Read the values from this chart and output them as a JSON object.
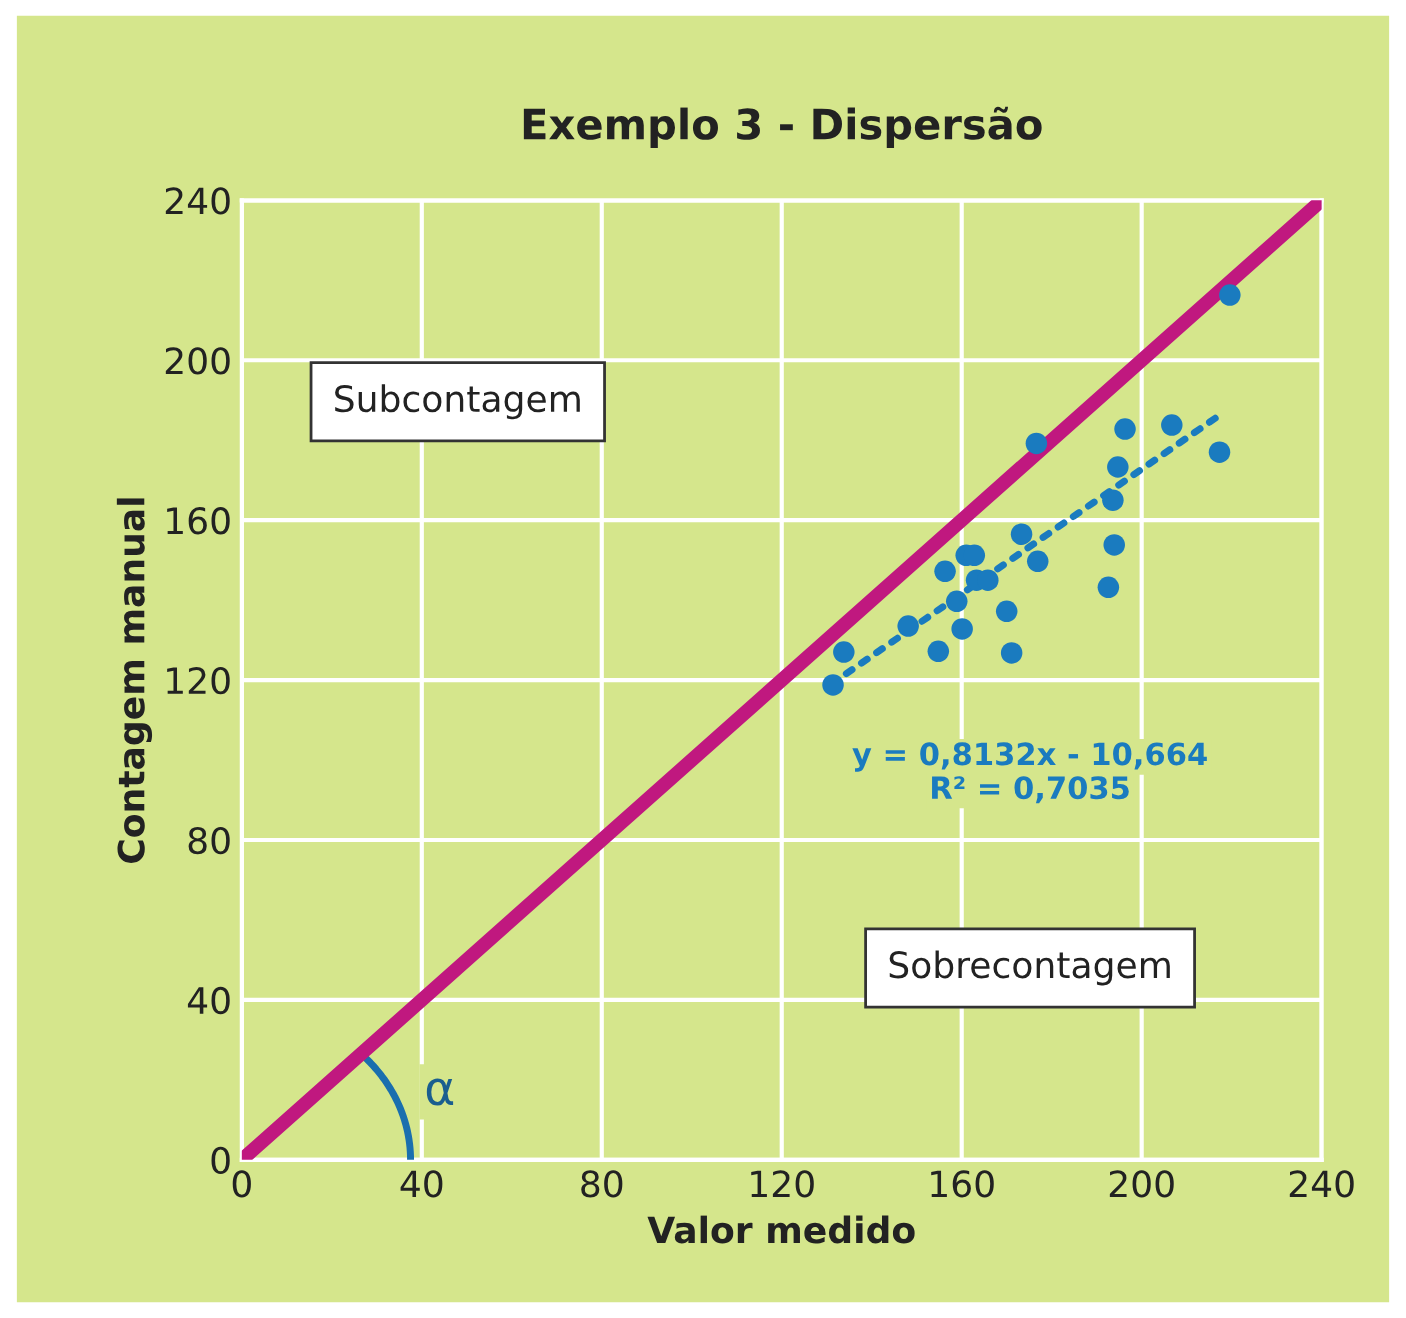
{
  "chart_data": {
    "type": "scatter",
    "title": "Exemplo 3 - Dispersão",
    "xlabel": "Valor medido",
    "ylabel": "Contagem manual",
    "xlim": [
      0,
      240
    ],
    "ylim": [
      0,
      240
    ],
    "xticks": [
      0,
      40,
      80,
      120,
      160,
      200,
      240
    ],
    "yticks": [
      0,
      40,
      80,
      120,
      160,
      200,
      240
    ],
    "grid": true,
    "series": [
      {
        "color": "#1a7bbf",
        "marker": "circle",
        "x": [
          219.6,
          196.3,
          206.7,
          176.6,
          194.7,
          217.3,
          193.6,
          173.3,
          193.9,
          161,
          162.8,
          156.3,
          176.9,
          163.3,
          165.8,
          192.6,
          158.9,
          170,
          148.1,
          160.1,
          133.8,
          154.8,
          171.1,
          131.4
        ],
        "values": [
          216.3,
          182.8,
          183.8,
          179.2,
          173.3,
          177,
          165,
          156.5,
          153.8,
          151.2,
          151.2,
          147.2,
          149.7,
          145,
          145,
          143.2,
          139.7,
          137.2,
          133.5,
          132.8,
          127,
          127.2,
          126.8,
          118.8
        ]
      },
      {
        "type": "line",
        "color": "#1a7bbf",
        "line_style": "dotted",
        "x": [
          131,
          217
        ],
        "values": [
          119,
          186
        ]
      },
      {
        "type": "line",
        "color": "#c0187f",
        "line_style": "solid",
        "x": [
          0,
          240
        ],
        "values": [
          0,
          240
        ]
      }
    ],
    "annotations": [
      "Subcontagem",
      "Sobrecontagem",
      "y = 0,8132x - 10,664",
      "R² = 0,7035",
      {
        "text": "α",
        "x": 44,
        "y": 17
      }
    ]
  }
}
